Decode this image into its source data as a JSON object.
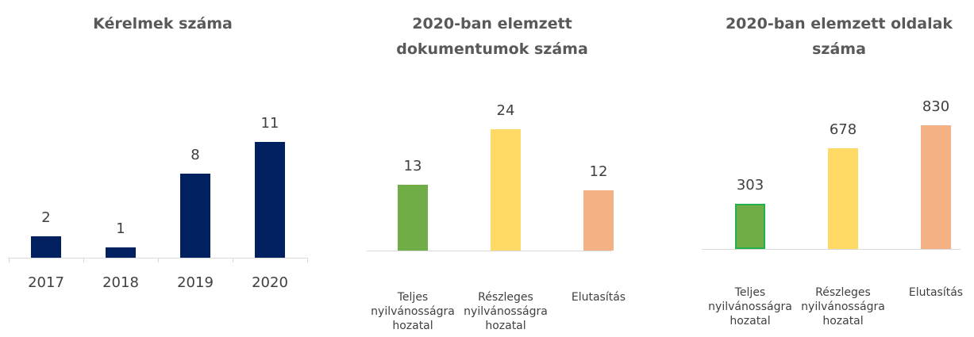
{
  "chart_data": [
    {
      "type": "bar",
      "title": "Kérelmek száma",
      "categories": [
        "2017",
        "2018",
        "2019",
        "2020"
      ],
      "values": [
        2,
        1,
        8,
        11
      ],
      "colors": [
        "#002060",
        "#002060",
        "#002060",
        "#002060"
      ]
    },
    {
      "type": "bar",
      "title": "2020-ban elemzett dokumentumok száma",
      "categories": [
        "Teljes nyilvánosságra hozatal",
        "Részleges nyilvánosságra hozatal",
        "Elutasítás"
      ],
      "values": [
        13,
        24,
        12
      ],
      "colors": [
        "#70ad47",
        "#ffd966",
        "#f4b183"
      ]
    },
    {
      "type": "bar",
      "title": "2020-ban elemzett oldalak száma",
      "categories": [
        "Teljes nyilvánosságra hozatal",
        "Részleges nyilvánosságra hozatal",
        "Elutasítás"
      ],
      "values": [
        303,
        678,
        830
      ],
      "colors": [
        "#70ad47",
        "#ffd966",
        "#f4b183"
      ]
    }
  ]
}
